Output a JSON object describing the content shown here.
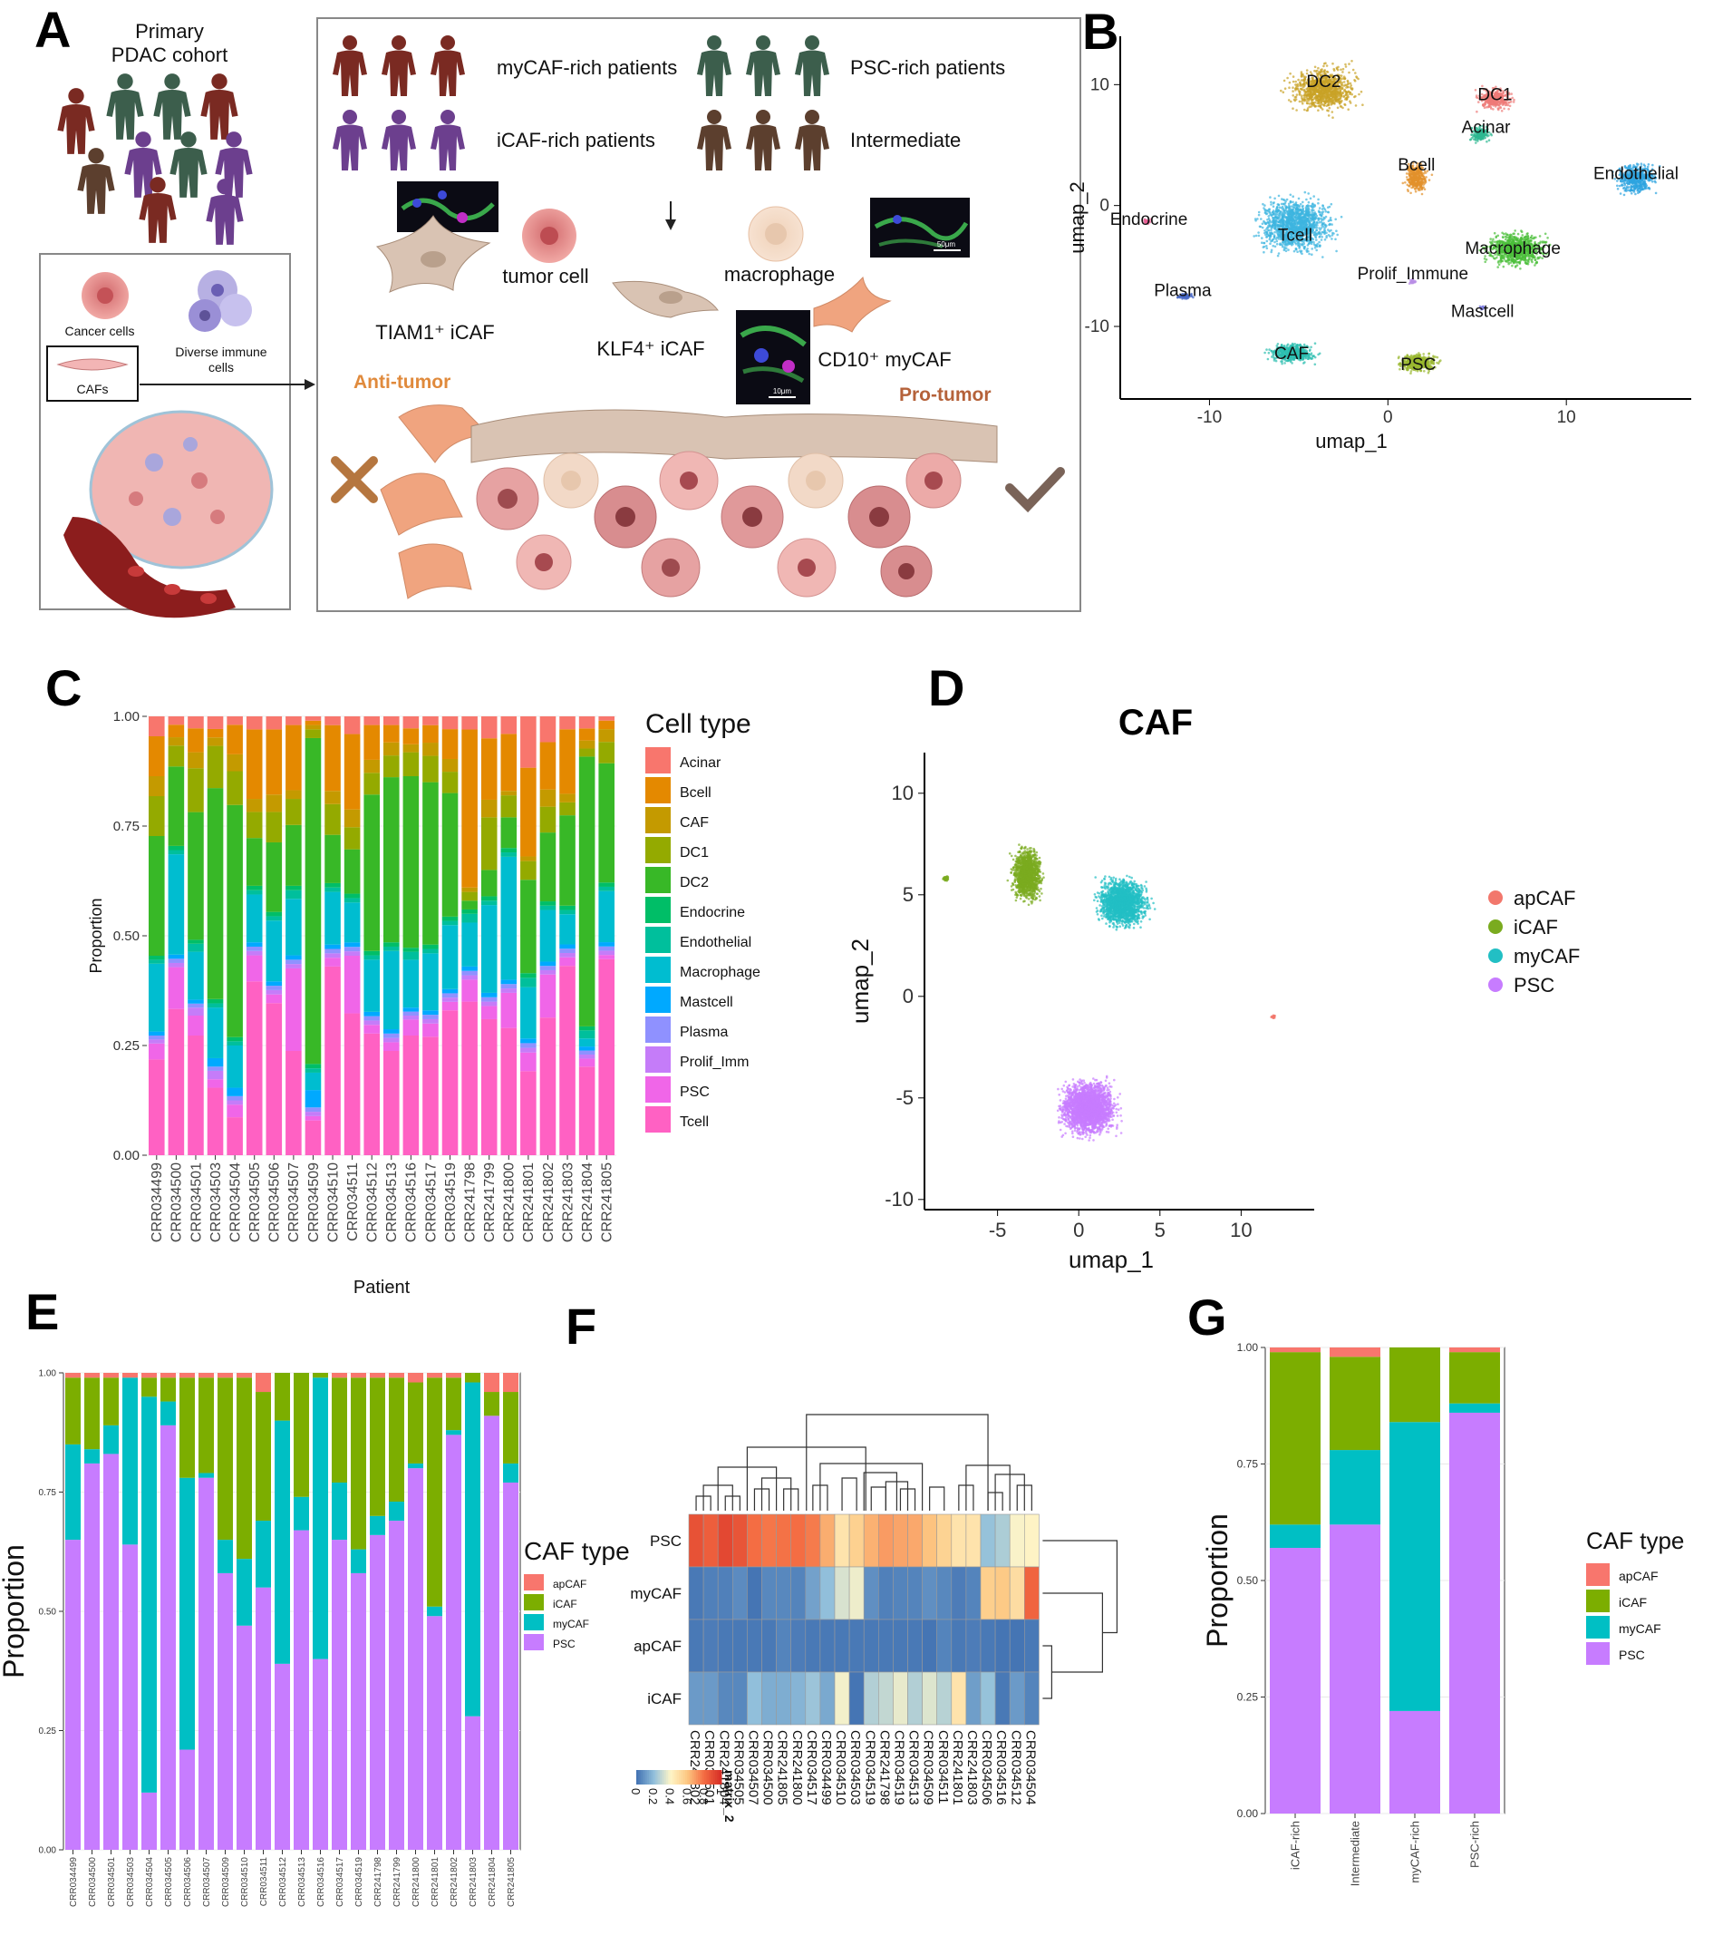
{
  "panels": {
    "A": "A",
    "B": "B",
    "C": "C",
    "D": "D",
    "E": "E",
    "F": "F",
    "G": "G"
  },
  "schematic": {
    "cohort_title": "Primary\nPDAC cohort",
    "cancer_cells": "Cancer cells",
    "diverse_immune": "Diverse immune\ncells",
    "cafs": "CAFs",
    "groups": [
      "myCAF-rich patients",
      "PSC-rich patients",
      "iCAF-rich patients",
      "Intermediate"
    ],
    "tumor_cell": "tumor cell",
    "macrophage": "macrophage",
    "tiam1": "TIAM1⁺ iCAF",
    "klf4": "KLF4⁺ iCAF",
    "cd10": "CD10⁺ myCAF",
    "anti_tumor": "Anti-tumor",
    "pro_tumor": "Pro-tumor",
    "scalebar_50": "50μm",
    "scalebar_10": "10μm",
    "colors": {
      "mycaf_person": "#7a2a22",
      "psc_person": "#3c5e4c",
      "icaf_person": "#6c3f8e",
      "inter_person": "#5c3f2e",
      "anti": "#e08a3c",
      "pro": "#b5623a"
    }
  },
  "umap_all": {
    "xlabel": "umap_1",
    "ylabel": "umap_2",
    "xticks": [
      -10,
      0,
      10
    ],
    "yticks": [
      10,
      0,
      -10
    ],
    "clusters": [
      {
        "label": "DC2",
        "x": -3.6,
        "y": 9.8,
        "color": "#c9a227"
      },
      {
        "label": "DC1",
        "x": 6.0,
        "y": 8.7,
        "color": "#ee7b77"
      },
      {
        "label": "Acinar",
        "x": 5.5,
        "y": 6.0,
        "color": "#2db892"
      },
      {
        "label": "Bcell",
        "x": 1.6,
        "y": 2.9,
        "color": "#e3922c"
      },
      {
        "label": "Endothelial",
        "x": 13.9,
        "y": 2.2,
        "color": "#2ea4df"
      },
      {
        "label": "Endocrine",
        "x": -13.4,
        "y": -1.6,
        "color": "#e85f94"
      },
      {
        "label": "Tcell",
        "x": -5.2,
        "y": -2.9,
        "color": "#3db5e0"
      },
      {
        "label": "Macrophage",
        "x": 7.0,
        "y": -4.0,
        "color": "#4bbf3a"
      },
      {
        "label": "Prolif_Immune",
        "x": 1.4,
        "y": -6.1,
        "color": "#b98ee6"
      },
      {
        "label": "Plasma",
        "x": -11.5,
        "y": -7.5,
        "color": "#4667c6"
      },
      {
        "label": "Mastcell",
        "x": 5.3,
        "y": -9.2,
        "color": "#7f7fe0"
      },
      {
        "label": "CAF",
        "x": -5.4,
        "y": -12.7,
        "color": "#2bbdaf"
      },
      {
        "label": "PSC",
        "x": 1.7,
        "y": -13.6,
        "color": "#9ab82f"
      }
    ]
  },
  "caf_umap": {
    "title": "CAF",
    "xlabel": "umap_1",
    "ylabel": "umap_2",
    "xticks": [
      -5,
      0,
      5,
      10
    ],
    "yticks": [
      10,
      5,
      0,
      -5,
      -10
    ],
    "legend": [
      {
        "label": "apCAF",
        "color": "#f2776c"
      },
      {
        "label": "iCAF",
        "color": "#7aab1f"
      },
      {
        "label": "myCAF",
        "color": "#22bfc4"
      },
      {
        "label": "PSC",
        "color": "#c77cff"
      }
    ]
  },
  "chart_data": [
    {
      "id": "C",
      "type": "bar",
      "stacked": true,
      "title": "",
      "xlabel": "Patient",
      "ylabel": "Proportion",
      "ylim": [
        0,
        1
      ],
      "yticks": [
        "0.00",
        "0.25",
        "0.50",
        "0.75",
        "1.00"
      ],
      "legend_title": "Cell type",
      "categories": [
        "CRR034499",
        "CRR034500",
        "CRR034501",
        "CRR034503",
        "CRR034504",
        "CRR034505",
        "CRR034506",
        "CRR034507",
        "CRR034509",
        "CRR034510",
        "CRR034511",
        "CRR034512",
        "CRR034513",
        "CRR034516",
        "CRR034517",
        "CRR034519",
        "CRR241798",
        "CRR241799",
        "CRR241800",
        "CRR241801",
        "CRR241802",
        "CRR241803",
        "CRR241804",
        "CRR241805"
      ],
      "series": [
        {
          "name": "Tcell",
          "color": "#ff61c3",
          "values": [
            0.24,
            0.35,
            0.3,
            0.16,
            0.09,
            0.4,
            0.35,
            0.24,
            0.08,
            0.43,
            0.32,
            0.28,
            0.24,
            0.3,
            0.27,
            0.34,
            0.35,
            0.31,
            0.29,
            0.18,
            0.32,
            0.44,
            0.22,
            0.46
          ]
        },
        {
          "name": "PSC",
          "color": "#f066e8",
          "values": [
            0.04,
            0.1,
            0.05,
            0.02,
            0.03,
            0.06,
            0.02,
            0.19,
            0.01,
            0.02,
            0.13,
            0.02,
            0.02,
            0.04,
            0.03,
            0.02,
            0.05,
            0.03,
            0.08,
            0.04,
            0.1,
            0.02,
            0.02,
            0.01
          ]
        },
        {
          "name": "Prolif_Imm",
          "color": "#c57cf9",
          "values": [
            0.01,
            0.01,
            0.02,
            0.02,
            0.01,
            0.01,
            0.01,
            0.01,
            0.01,
            0.01,
            0.01,
            0.01,
            0.01,
            0.01,
            0.01,
            0.01,
            0.01,
            0.01,
            0.01,
            0.01,
            0.01,
            0.01,
            0.01,
            0.01
          ]
        },
        {
          "name": "Plasma",
          "color": "#8f91ff",
          "values": [
            0.01,
            0.01,
            0.01,
            0.01,
            0.01,
            0.01,
            0.01,
            0.01,
            0.01,
            0.01,
            0.01,
            0.01,
            0.01,
            0.01,
            0.01,
            0.01,
            0.01,
            0.01,
            0.01,
            0.01,
            0.01,
            0.01,
            0.01,
            0.01
          ]
        },
        {
          "name": "Mastcell",
          "color": "#00a9ff",
          "values": [
            0.01,
            0.01,
            0.01,
            0.02,
            0.02,
            0.01,
            0.01,
            0.01,
            0.04,
            0.01,
            0.01,
            0.01,
            0.01,
            0.01,
            0.01,
            0.01,
            0.01,
            0.01,
            0.01,
            0.01,
            0.01,
            0.01,
            0.01,
            0.01
          ]
        },
        {
          "name": "Macrophage",
          "color": "#00bdd0",
          "values": [
            0.17,
            0.24,
            0.12,
            0.12,
            0.1,
            0.11,
            0.14,
            0.13,
            0.04,
            0.12,
            0.09,
            0.12,
            0.18,
            0.12,
            0.13,
            0.15,
            0.1,
            0.2,
            0.28,
            0.11,
            0.12,
            0.07,
            0.02,
            0.12
          ]
        },
        {
          "name": "Endothelial",
          "color": "#00bf9c",
          "values": [
            0.01,
            0.01,
            0.02,
            0.01,
            0.01,
            0.01,
            0.01,
            0.02,
            0.01,
            0.01,
            0.01,
            0.01,
            0.01,
            0.02,
            0.01,
            0.01,
            0.02,
            0.01,
            0.01,
            0.02,
            0.01,
            0.01,
            0.02,
            0.01
          ]
        },
        {
          "name": "Endocrine",
          "color": "#00be67",
          "values": [
            0.01,
            0.01,
            0.01,
            0.01,
            0.01,
            0.01,
            0.01,
            0.01,
            0.01,
            0.01,
            0.01,
            0.01,
            0.01,
            0.01,
            0.01,
            0.01,
            0.01,
            0.01,
            0.01,
            0.01,
            0.01,
            0.01,
            0.01,
            0.01
          ]
        },
        {
          "name": "DC2",
          "color": "#38b827",
          "values": [
            0.3,
            0.19,
            0.32,
            0.5,
            0.55,
            0.11,
            0.16,
            0.14,
            0.75,
            0.11,
            0.1,
            0.36,
            0.38,
            0.43,
            0.37,
            0.29,
            0.02,
            0.06,
            0.07,
            0.2,
            0.16,
            0.21,
            0.67,
            0.28
          ]
        },
        {
          "name": "DC1",
          "color": "#94aa00",
          "values": [
            0.1,
            0.05,
            0.11,
            0.1,
            0.08,
            0.06,
            0.07,
            0.06,
            0.02,
            0.07,
            0.05,
            0.05,
            0.05,
            0.06,
            0.06,
            0.05,
            0.02,
            0.12,
            0.05,
            0.04,
            0.06,
            0.03,
            0.02,
            0.05
          ]
        },
        {
          "name": "CAF",
          "color": "#c49a00",
          "values": [
            0.05,
            0.02,
            0.04,
            0.02,
            0.04,
            0.03,
            0.04,
            0.02,
            0.01,
            0.03,
            0.04,
            0.03,
            0.03,
            0.02,
            0.03,
            0.03,
            0.01,
            0.04,
            0.01,
            0.01,
            0.04,
            0.02,
            0.02,
            0.03
          ]
        },
        {
          "name": "Bcell",
          "color": "#e48900",
          "values": [
            0.1,
            0.03,
            0.06,
            0.02,
            0.07,
            0.16,
            0.15,
            0.15,
            0.01,
            0.15,
            0.17,
            0.08,
            0.04,
            0.04,
            0.04,
            0.07,
            0.36,
            0.14,
            0.13,
            0.19,
            0.11,
            0.15,
            0.03,
            0.02
          ]
        },
        {
          "name": "Acinar",
          "color": "#f8766d",
          "values": [
            0.05,
            0.02,
            0.03,
            0.03,
            0.02,
            0.03,
            0.03,
            0.02,
            0.01,
            0.02,
            0.04,
            0.02,
            0.02,
            0.03,
            0.02,
            0.03,
            0.03,
            0.05,
            0.04,
            0.11,
            0.06,
            0.03,
            0.03,
            0.01
          ]
        }
      ]
    },
    {
      "id": "E",
      "type": "bar",
      "stacked": true,
      "title": "",
      "xlabel": "",
      "ylabel": "Proportion",
      "ylim": [
        0,
        1
      ],
      "yticks": [
        "0.00",
        "0.25",
        "0.50",
        "0.75",
        "1.00"
      ],
      "legend_title": "CAF type",
      "categories": [
        "CRR034499",
        "CRR034500",
        "CRR034501",
        "CRR034503",
        "CRR034504",
        "CRR034505",
        "CRR034506",
        "CRR034507",
        "CRR034509",
        "CRR034510",
        "CRR034511",
        "CRR034512",
        "CRR034513",
        "CRR034516",
        "CRR034517",
        "CRR034519",
        "CRR241798",
        "CRR241799",
        "CRR241800",
        "CRR241801",
        "CRR241802",
        "CRR241803",
        "CRR241804",
        "CRR241805"
      ],
      "series": [
        {
          "name": "PSC",
          "color": "#c77cff",
          "values": [
            0.65,
            0.81,
            0.83,
            0.64,
            0.12,
            0.89,
            0.21,
            0.78,
            0.58,
            0.47,
            0.55,
            0.39,
            0.67,
            0.4,
            0.65,
            0.58,
            0.66,
            0.69,
            0.8,
            0.49,
            0.87,
            0.28,
            0.91,
            0.77
          ]
        },
        {
          "name": "myCAF",
          "color": "#00bfc4",
          "values": [
            0.2,
            0.03,
            0.06,
            0.35,
            0.83,
            0.05,
            0.57,
            0.01,
            0.07,
            0.14,
            0.14,
            0.51,
            0.07,
            0.59,
            0.12,
            0.05,
            0.04,
            0.04,
            0.01,
            0.02,
            0.01,
            0.7,
            0.0,
            0.04
          ]
        },
        {
          "name": "iCAF",
          "color": "#7cae00",
          "values": [
            0.14,
            0.15,
            0.1,
            0.0,
            0.04,
            0.05,
            0.21,
            0.2,
            0.34,
            0.38,
            0.27,
            0.1,
            0.26,
            0.01,
            0.22,
            0.36,
            0.29,
            0.26,
            0.17,
            0.48,
            0.11,
            0.02,
            0.05,
            0.15
          ]
        },
        {
          "name": "apCAF",
          "color": "#f8766d",
          "values": [
            0.01,
            0.01,
            0.01,
            0.01,
            0.01,
            0.01,
            0.01,
            0.01,
            0.01,
            0.01,
            0.04,
            0.0,
            0.0,
            0.0,
            0.01,
            0.01,
            0.01,
            0.01,
            0.02,
            0.01,
            0.01,
            0.0,
            0.04,
            0.04
          ]
        }
      ],
      "legend": [
        {
          "label": "apCAF",
          "color": "#f8766d"
        },
        {
          "label": "iCAF",
          "color": "#7cae00"
        },
        {
          "label": "myCAF",
          "color": "#00bfc4"
        },
        {
          "label": "PSC",
          "color": "#c77cff"
        }
      ]
    },
    {
      "id": "F",
      "type": "heatmap",
      "title": "",
      "legend_title": "matrix_2",
      "rows": [
        "PSC",
        "myCAF",
        "apCAF",
        "iCAF"
      ],
      "columns": [
        "CRR241802",
        "CRR034501",
        "CRR241804",
        "CRR034505",
        "CRR034507",
        "CRR034500",
        "CRR241805",
        "CRR241800",
        "CRR034517",
        "CRR034499",
        "CRR034510",
        "CRR034503",
        "CRR034519",
        "CRR241798",
        "CRR034519",
        "CRR034513",
        "CRR034509",
        "CRR034511",
        "CRR241801",
        "CRR241803",
        "CRR034506",
        "CRR034516",
        "CRR034512",
        "CRR034504"
      ],
      "values": [
        [
          0.89,
          0.85,
          0.92,
          0.88,
          0.8,
          0.78,
          0.79,
          0.8,
          0.77,
          0.66,
          0.48,
          0.56,
          0.65,
          0.7,
          0.68,
          0.67,
          0.61,
          0.55,
          0.48,
          0.48,
          0.21,
          0.25,
          0.39,
          0.41
        ],
        [
          0.01,
          0.03,
          0.03,
          0.06,
          0.0,
          0.05,
          0.05,
          0.04,
          0.12,
          0.2,
          0.33,
          0.37,
          0.07,
          0.03,
          0.04,
          0.04,
          0.07,
          0.05,
          0.02,
          0.04,
          0.57,
          0.59,
          0.51,
          0.83
        ],
        [
          0.01,
          0.02,
          0.01,
          0.01,
          0.01,
          0.01,
          0.04,
          0.02,
          0.01,
          0.01,
          0.01,
          0.01,
          0.01,
          0.01,
          0.01,
          0.01,
          0.0,
          0.04,
          0.01,
          0.02,
          0.01,
          0.0,
          0.0,
          0.01
        ],
        [
          0.1,
          0.1,
          0.05,
          0.05,
          0.2,
          0.15,
          0.15,
          0.17,
          0.22,
          0.14,
          0.38,
          0.0,
          0.26,
          0.29,
          0.36,
          0.26,
          0.34,
          0.27,
          0.48,
          0.11,
          0.21,
          0.01,
          0.1,
          0.04
        ]
      ],
      "legend_ticks": [
        "0",
        "0.2",
        "0.4",
        "0.6",
        "0.8",
        "1"
      ]
    },
    {
      "id": "G",
      "type": "bar",
      "stacked": true,
      "title": "",
      "xlabel": "",
      "ylabel": "Proportion",
      "ylim": [
        0,
        1
      ],
      "yticks": [
        "0.00",
        "0.25",
        "0.50",
        "0.75",
        "1.00"
      ],
      "legend_title": "CAF type",
      "categories": [
        "iCAF-rich",
        "Intermediate",
        "myCAF-rich",
        "PSC-rich"
      ],
      "series": [
        {
          "name": "PSC",
          "color": "#c77cff",
          "values": [
            0.57,
            0.62,
            0.22,
            0.86
          ]
        },
        {
          "name": "myCAF",
          "color": "#00bfc4",
          "values": [
            0.05,
            0.16,
            0.62,
            0.02
          ]
        },
        {
          "name": "iCAF",
          "color": "#7cae00",
          "values": [
            0.37,
            0.2,
            0.16,
            0.11
          ]
        },
        {
          "name": "apCAF",
          "color": "#f8766d",
          "values": [
            0.01,
            0.02,
            0.0,
            0.01
          ]
        }
      ],
      "legend": [
        {
          "label": "apCAF",
          "color": "#f8766d"
        },
        {
          "label": "iCAF",
          "color": "#7cae00"
        },
        {
          "label": "myCAF",
          "color": "#00bfc4"
        },
        {
          "label": "PSC",
          "color": "#c77cff"
        }
      ]
    }
  ]
}
